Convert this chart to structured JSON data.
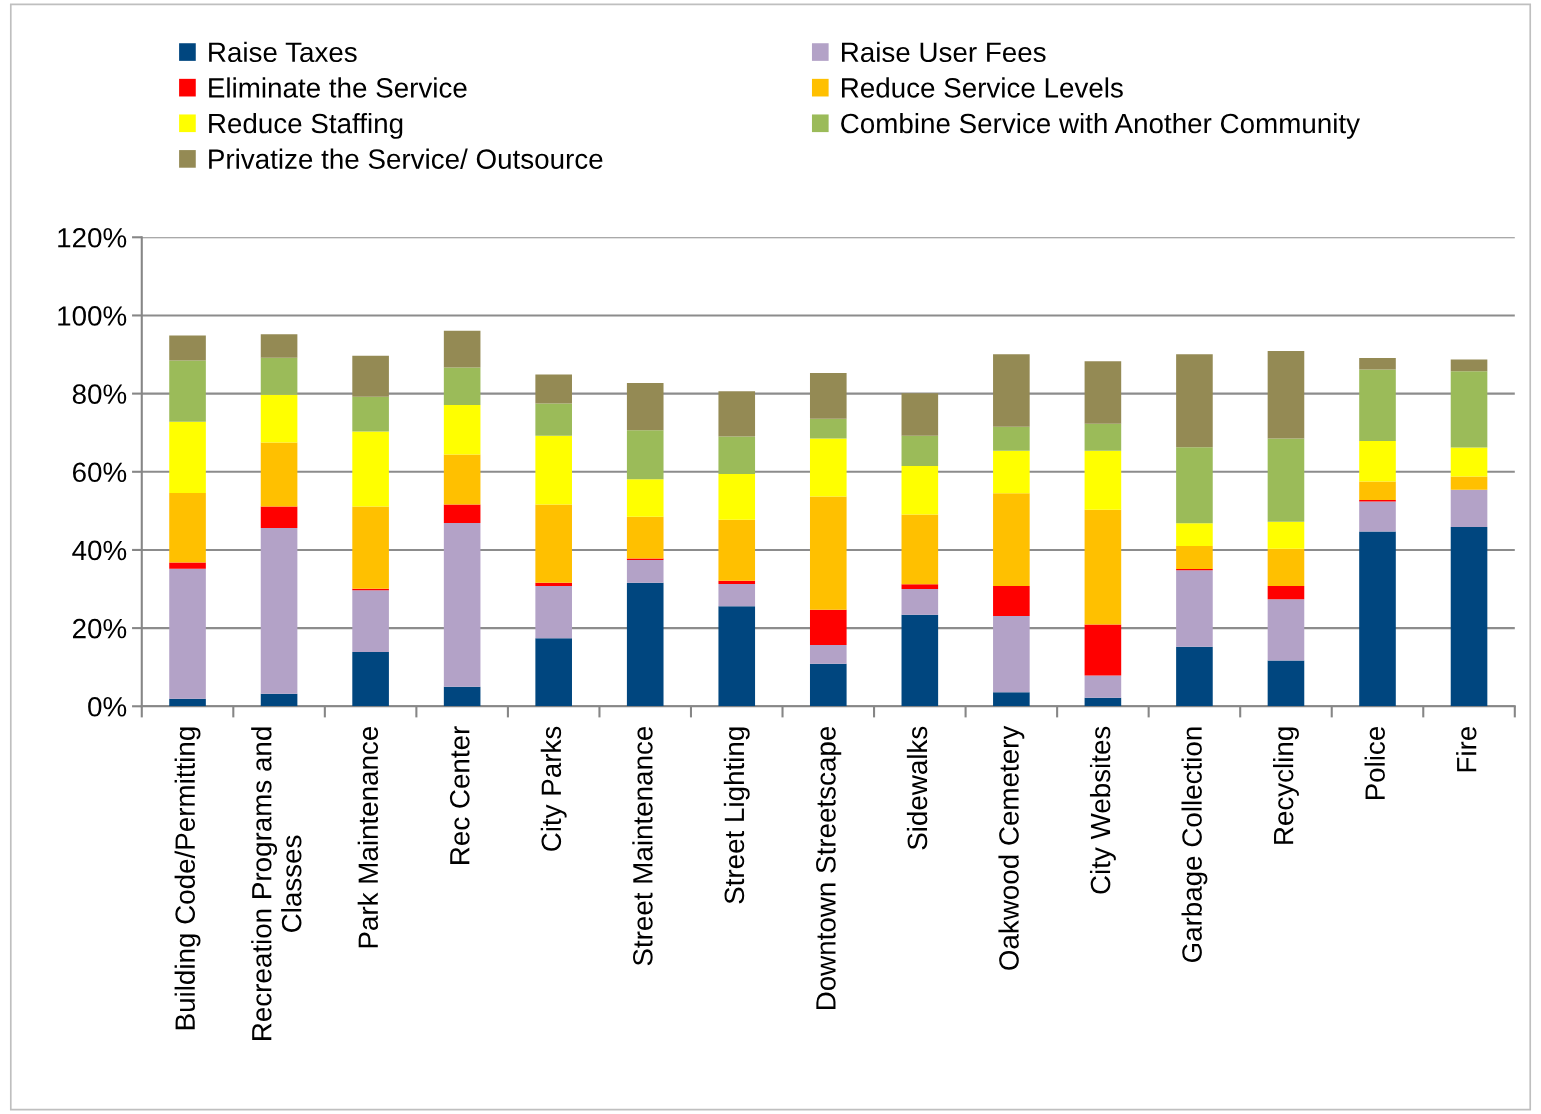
{
  "chart_data": {
    "type": "bar",
    "stacked": true,
    "categories": [
      "Building Code/Permitting",
      "Recreation Programs and Classes",
      "Park Maintenance",
      "Rec Center",
      "City Parks",
      "Street Maintenance",
      "Street Lighting",
      "Downtown Streetscape",
      "Sidewalks",
      "Oakwood Cemetery",
      "City Websites",
      "Garbage Collection",
      "Recycling",
      "Police",
      "Fire"
    ],
    "series": [
      {
        "name": "Raise Taxes",
        "color": "#00467f",
        "values": [
          1.9,
          3.2,
          13.9,
          5.0,
          17.4,
          31.6,
          25.6,
          10.9,
          23.4,
          3.6,
          2.2,
          15.2,
          11.7,
          44.7,
          45.9
        ]
      },
      {
        "name": "Raise User Fees",
        "color": "#b3a2c7",
        "values": [
          33.3,
          42.4,
          15.8,
          41.9,
          13.4,
          5.8,
          5.7,
          4.8,
          6.6,
          19.5,
          5.7,
          19.6,
          15.7,
          7.7,
          9.5
        ]
      },
      {
        "name": "Eliminate the Service",
        "color": "#ff0000",
        "values": [
          1.6,
          5.5,
          0.4,
          4.7,
          0.8,
          0.4,
          0.8,
          9.0,
          1.2,
          7.7,
          13.0,
          0.3,
          3.4,
          0.4,
          0
        ]
      },
      {
        "name": "Reduce Service Levels",
        "color": "#ffc000",
        "values": [
          17.8,
          16.4,
          21.0,
          12.8,
          20.0,
          10.7,
          15.6,
          29.0,
          17.9,
          23.7,
          29.4,
          5.9,
          9.5,
          4.7,
          3.4
        ]
      },
      {
        "name": "Reduce Staffing",
        "color": "#ffff00",
        "values": [
          18.2,
          12.2,
          19.2,
          12.7,
          17.6,
          9.6,
          11.7,
          14.8,
          12.4,
          10.9,
          15.1,
          5.8,
          6.9,
          10.4,
          7.4
        ]
      },
      {
        "name": "Combine Service with Another Community",
        "color": "#9bbb59",
        "values": [
          15.7,
          9.5,
          8.9,
          9.6,
          8.3,
          12.5,
          9.6,
          5.1,
          7.7,
          6.1,
          6.9,
          19.5,
          21.3,
          18.3,
          19.5
        ]
      },
      {
        "name": "Privatize the Service/ Outsource",
        "color": "#948a54",
        "values": [
          6.4,
          6.0,
          10.5,
          9.4,
          7.4,
          12.1,
          11.6,
          11.7,
          10.9,
          18.6,
          16.0,
          23.8,
          22.4,
          2.9,
          3.0
        ]
      }
    ],
    "ylim": [
      0,
      120
    ],
    "yticks": [
      {
        "value": 0,
        "label": "0%"
      },
      {
        "value": 20,
        "label": "20%"
      },
      {
        "value": 40,
        "label": "40%"
      },
      {
        "value": 60,
        "label": "60%"
      },
      {
        "value": 80,
        "label": "80%"
      },
      {
        "value": 100,
        "label": "100%"
      },
      {
        "value": 120,
        "label": "120%"
      }
    ],
    "grid": "y",
    "legend": "top"
  }
}
